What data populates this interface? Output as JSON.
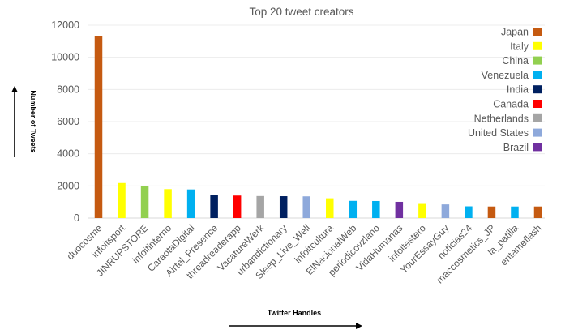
{
  "chart_data": {
    "type": "bar",
    "title": "Top 20 tweet creators",
    "xlabel": "Twitter Handles",
    "ylabel": "Number of Tweets",
    "ylim": [
      0,
      12000
    ],
    "yticks": [
      0,
      2000,
      4000,
      6000,
      8000,
      10000,
      12000
    ],
    "grid": true,
    "legend_position": "top-right",
    "categories": [
      "duocosme",
      "infoitsport",
      "JINRUPSTORE",
      "infoitinterno",
      "CaraotaDigital",
      "Airtel_Presence",
      "threadreaderapp",
      "VacatureWerk",
      "urbandictionary",
      "Sleep_Live_Well",
      "infoitcultura",
      "ElNacionalWeb",
      "periodicovzlano",
      "VidaHumanas",
      "infoitestero",
      "YourEssayGuy",
      "noticias24",
      "maccosmetics_JP",
      "la_patilla",
      "entameflash"
    ],
    "values": [
      11300,
      2180,
      1980,
      1800,
      1780,
      1420,
      1400,
      1370,
      1360,
      1350,
      1230,
      1070,
      1060,
      1010,
      880,
      850,
      730,
      720,
      720,
      720
    ],
    "countries": [
      "Japan",
      "Italy",
      "China",
      "Italy",
      "Venezuela",
      "India",
      "Canada",
      "Netherlands",
      "India",
      "United States",
      "Italy",
      "Venezuela",
      "Venezuela",
      "Brazil",
      "Italy",
      "United States",
      "Venezuela",
      "Japan",
      "Venezuela",
      "Japan"
    ],
    "legend": [
      {
        "name": "Japan",
        "color": "#C55A11"
      },
      {
        "name": "Italy",
        "color": "#FFFF00"
      },
      {
        "name": "China",
        "color": "#92D050"
      },
      {
        "name": "Venezuela",
        "color": "#00B0F0"
      },
      {
        "name": "India",
        "color": "#002060"
      },
      {
        "name": "Canada",
        "color": "#FF0000"
      },
      {
        "name": "Netherlands",
        "color": "#A5A5A5"
      },
      {
        "name": "United States",
        "color": "#8EA9DB"
      },
      {
        "name": "Brazil",
        "color": "#7030A0"
      }
    ]
  }
}
